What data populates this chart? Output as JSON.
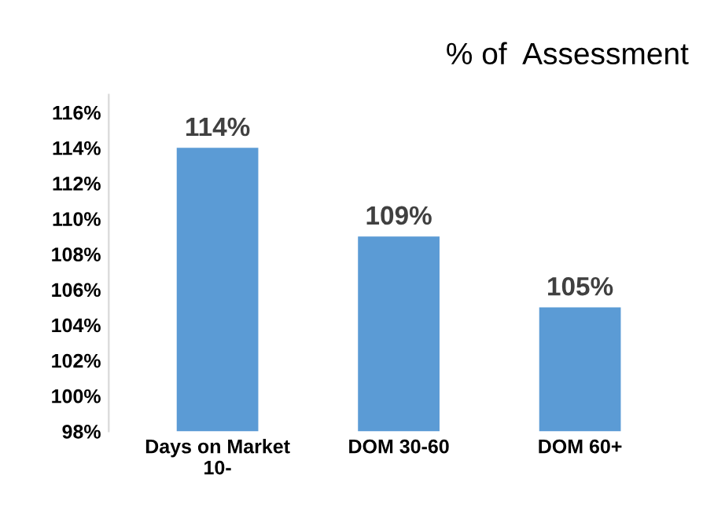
{
  "chart_data": {
    "type": "bar",
    "title": "% of  Assessment",
    "categories": [
      "Days on Market\n10-",
      "DOM 30-60",
      "DOM 60+"
    ],
    "values": [
      114,
      109,
      105
    ],
    "color": "#5b9bd5",
    "value_labels": [
      "114%",
      "109%",
      "105%"
    ],
    "ylim": [
      98,
      117
    ],
    "yticks": [
      {
        "value": 98,
        "label": "98%"
      },
      {
        "value": 100,
        "label": "100%"
      },
      {
        "value": 102,
        "label": "102%"
      },
      {
        "value": 104,
        "label": "104%"
      },
      {
        "value": 106,
        "label": "106%"
      },
      {
        "value": 108,
        "label": "108%"
      },
      {
        "value": 110,
        "label": "110%"
      },
      {
        "value": 112,
        "label": "112%"
      },
      {
        "value": 114,
        "label": "114%"
      },
      {
        "value": 116,
        "label": "116%"
      }
    ],
    "grid": false,
    "legend": false
  }
}
